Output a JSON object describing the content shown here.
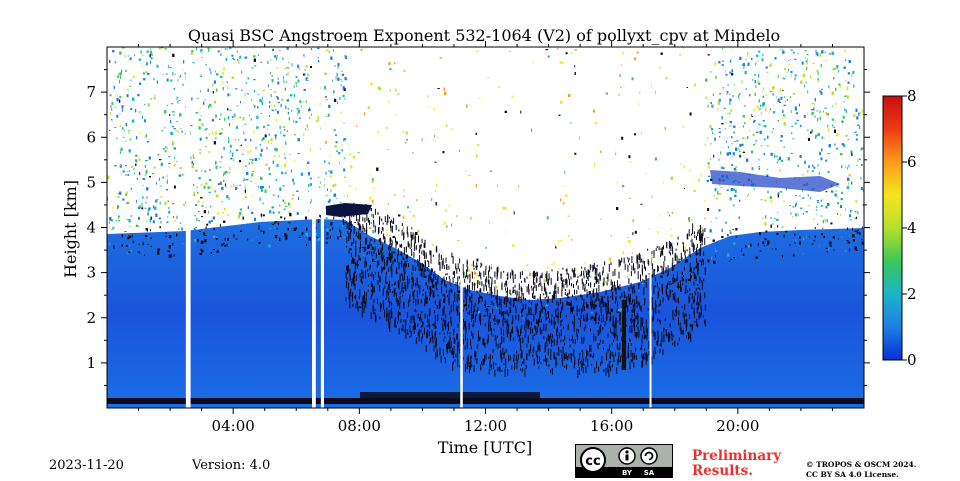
{
  "chart_data": {
    "type": "heatmap",
    "title": "Quasi BSC Angstroem Exponent 532-1064 (V2) of pollyxt_cpv at Mindelo",
    "xlabel": "Time [UTC]",
    "ylabel": "Height [km]",
    "xlim": [
      0,
      24
    ],
    "ylim": [
      0,
      8
    ],
    "x_ticks": [
      4,
      8,
      12,
      16,
      20
    ],
    "x_tick_labels": [
      "04:00",
      "08:00",
      "12:00",
      "16:00",
      "20:00"
    ],
    "y_ticks": [
      1,
      2,
      3,
      4,
      5,
      6,
      7
    ],
    "y_tick_labels": [
      "1",
      "2",
      "3",
      "4",
      "5",
      "6",
      "7"
    ],
    "colorbar": {
      "range": [
        0,
        8
      ],
      "ticks": [
        0,
        2,
        4,
        6,
        8
      ],
      "tick_labels": [
        "0",
        "2",
        "4",
        "6",
        "8"
      ],
      "colormap": "jet",
      "colors": [
        "#0a2fd8",
        "#1e7fe6",
        "#1bb5c6",
        "#3ac85a",
        "#b6e02a",
        "#f5e51c",
        "#fb9b1d",
        "#ef3a14",
        "#c60f0f"
      ]
    },
    "data_gaps_hours": [
      [
        2.5,
        2.65
      ],
      [
        6.5,
        6.62
      ],
      [
        6.78,
        6.88
      ],
      [
        11.2,
        11.28
      ],
      [
        17.2,
        17.26
      ]
    ],
    "features": {
      "boundary_layer_top_km": 3.9,
      "dust_layer_top_km": 4.1,
      "midday_max_aerosol_height_km": 3.0,
      "clear_region_value": "no data (white)"
    }
  },
  "footer": {
    "date": "2023-11-20",
    "version": "Version: 4.0",
    "preliminary_line1": "Preliminary",
    "preliminary_line2": "Results.",
    "copyright_line1": "© TROPOS & OSCM 2024.",
    "copyright_line2": "CC BY SA 4.0 License.",
    "cc_text": "cc",
    "by_text": "BY",
    "sa_text": "SA"
  }
}
